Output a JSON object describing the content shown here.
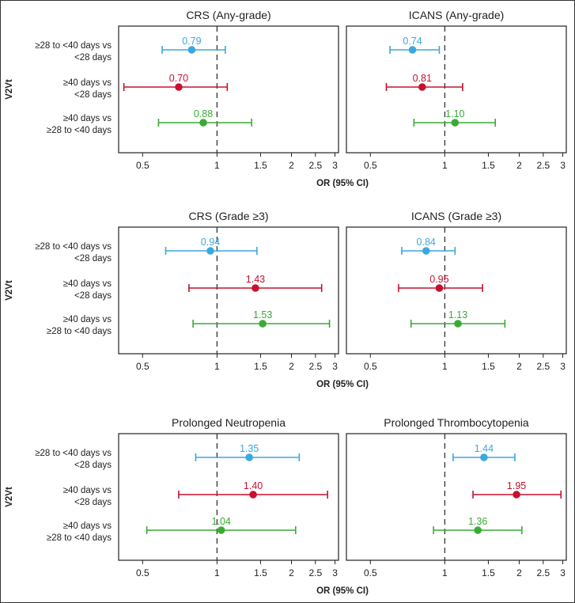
{
  "chart_data": {
    "type": "forest",
    "ylabel": "V2Vt",
    "xlabel": "OR (95% CI)",
    "x_scale": "log",
    "xlim": [
      0.4,
      3.1
    ],
    "xticks": [
      0.5,
      1,
      1.5,
      2,
      2.5,
      3
    ],
    "xtick_labels": [
      "0.5",
      "1",
      "1.5",
      "2",
      "2.5",
      "3"
    ],
    "reference_line": 1,
    "comparisons": [
      {
        "label_line1": "≥28 to <40 days vs",
        "label_line2": "<28 days",
        "color": "#3aa8e0"
      },
      {
        "label_line1": "≥40 days vs",
        "label_line2": "<28 days",
        "color": "#c8102e"
      },
      {
        "label_line1": "≥40 days vs",
        "label_line2": "≥28 to <40 days",
        "color": "#3aaa35"
      }
    ],
    "panels": [
      {
        "title": "CRS (Any-grade)",
        "points": [
          {
            "or": 0.79,
            "lo": 0.6,
            "hi": 1.08,
            "label": "0.79"
          },
          {
            "or": 0.7,
            "lo": 0.42,
            "hi": 1.1,
            "label": "0.70"
          },
          {
            "or": 0.88,
            "lo": 0.58,
            "hi": 1.38,
            "label": "0.88"
          }
        ]
      },
      {
        "title": "ICANS (Any-grade)",
        "points": [
          {
            "or": 0.74,
            "lo": 0.6,
            "hi": 0.95,
            "label": "0.74"
          },
          {
            "or": 0.81,
            "lo": 0.58,
            "hi": 1.18,
            "label": "0.81"
          },
          {
            "or": 1.1,
            "lo": 0.75,
            "hi": 1.6,
            "label": "1.10"
          }
        ]
      },
      {
        "title": "CRS (Grade ≥3)",
        "points": [
          {
            "or": 0.94,
            "lo": 0.62,
            "hi": 1.45,
            "label": "0.94"
          },
          {
            "or": 1.43,
            "lo": 0.77,
            "hi": 2.65,
            "label": "1.43"
          },
          {
            "or": 1.53,
            "lo": 0.8,
            "hi": 2.85,
            "label": "1.53"
          }
        ]
      },
      {
        "title": "ICANS (Grade ≥3)",
        "points": [
          {
            "or": 0.84,
            "lo": 0.67,
            "hi": 1.1,
            "label": "0.84"
          },
          {
            "or": 0.95,
            "lo": 0.65,
            "hi": 1.42,
            "label": "0.95"
          },
          {
            "or": 1.13,
            "lo": 0.73,
            "hi": 1.75,
            "label": "1.13"
          }
        ]
      },
      {
        "title": "Prolonged Neutropenia",
        "points": [
          {
            "or": 1.35,
            "lo": 0.82,
            "hi": 2.15,
            "label": "1.35"
          },
          {
            "or": 1.4,
            "lo": 0.7,
            "hi": 2.8,
            "label": "1.40"
          },
          {
            "or": 1.04,
            "lo": 0.52,
            "hi": 2.08,
            "label": "1.04"
          }
        ]
      },
      {
        "title": "Prolonged Thrombocytopenia",
        "points": [
          {
            "or": 1.44,
            "lo": 1.08,
            "hi": 1.92,
            "label": "1.44"
          },
          {
            "or": 1.95,
            "lo": 1.3,
            "hi": 2.95,
            "label": "1.95"
          },
          {
            "or": 1.36,
            "lo": 0.9,
            "hi": 2.05,
            "label": "1.36"
          }
        ]
      }
    ]
  }
}
